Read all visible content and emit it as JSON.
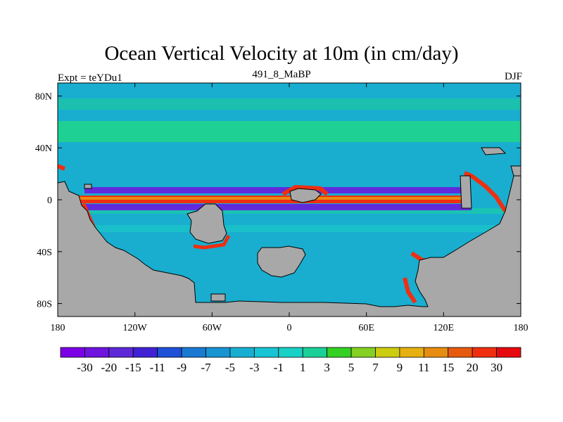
{
  "chart_data": {
    "type": "heatmap",
    "title": "Ocean Vertical Velocity at 10m (in cm/day)",
    "left_label": "Expt = teYDu1",
    "center_label": "491_8_MaBP",
    "right_label": "DJF",
    "xlim": [
      -180,
      180
    ],
    "ylim": [
      -90,
      90
    ],
    "x_ticks": [
      {
        "value": -180,
        "label": "180"
      },
      {
        "value": -120,
        "label": "120W"
      },
      {
        "value": -60,
        "label": "60W"
      },
      {
        "value": 0,
        "label": "0"
      },
      {
        "value": 60,
        "label": "60E"
      },
      {
        "value": 120,
        "label": "120E"
      },
      {
        "value": 180,
        "label": "180"
      }
    ],
    "y_ticks": [
      {
        "value": 80,
        "label": "80N"
      },
      {
        "value": 40,
        "label": "40N"
      },
      {
        "value": 0,
        "label": "0"
      },
      {
        "value": -40,
        "label": "40S"
      },
      {
        "value": -80,
        "label": "80S"
      }
    ],
    "colorbar": {
      "colors": [
        "#7b00e6",
        "#6e14de",
        "#5d28d8",
        "#4022d4",
        "#1e50d8",
        "#1a7ad2",
        "#1894d2",
        "#18aed2",
        "#18c4d4",
        "#18d0c6",
        "#1ad098",
        "#34d024",
        "#84d024",
        "#cccc10",
        "#e6b010",
        "#e68c10",
        "#e65a10",
        "#f02e10",
        "#e60a10"
      ],
      "tick_labels": [
        "-30",
        "-20",
        "-15",
        "-11",
        "-9",
        "-7",
        "-5",
        "-3",
        "-1",
        "1",
        "3",
        "5",
        "7",
        "9",
        "11",
        "15",
        "20",
        "30"
      ]
    },
    "features": {
      "land_color": "#a8a8a8",
      "background_color": "#19aecf",
      "northern_band_color": "#1fd094",
      "equatorial_upwelling_color": "#f02e10",
      "downwelling_color": "#6e14de"
    }
  }
}
